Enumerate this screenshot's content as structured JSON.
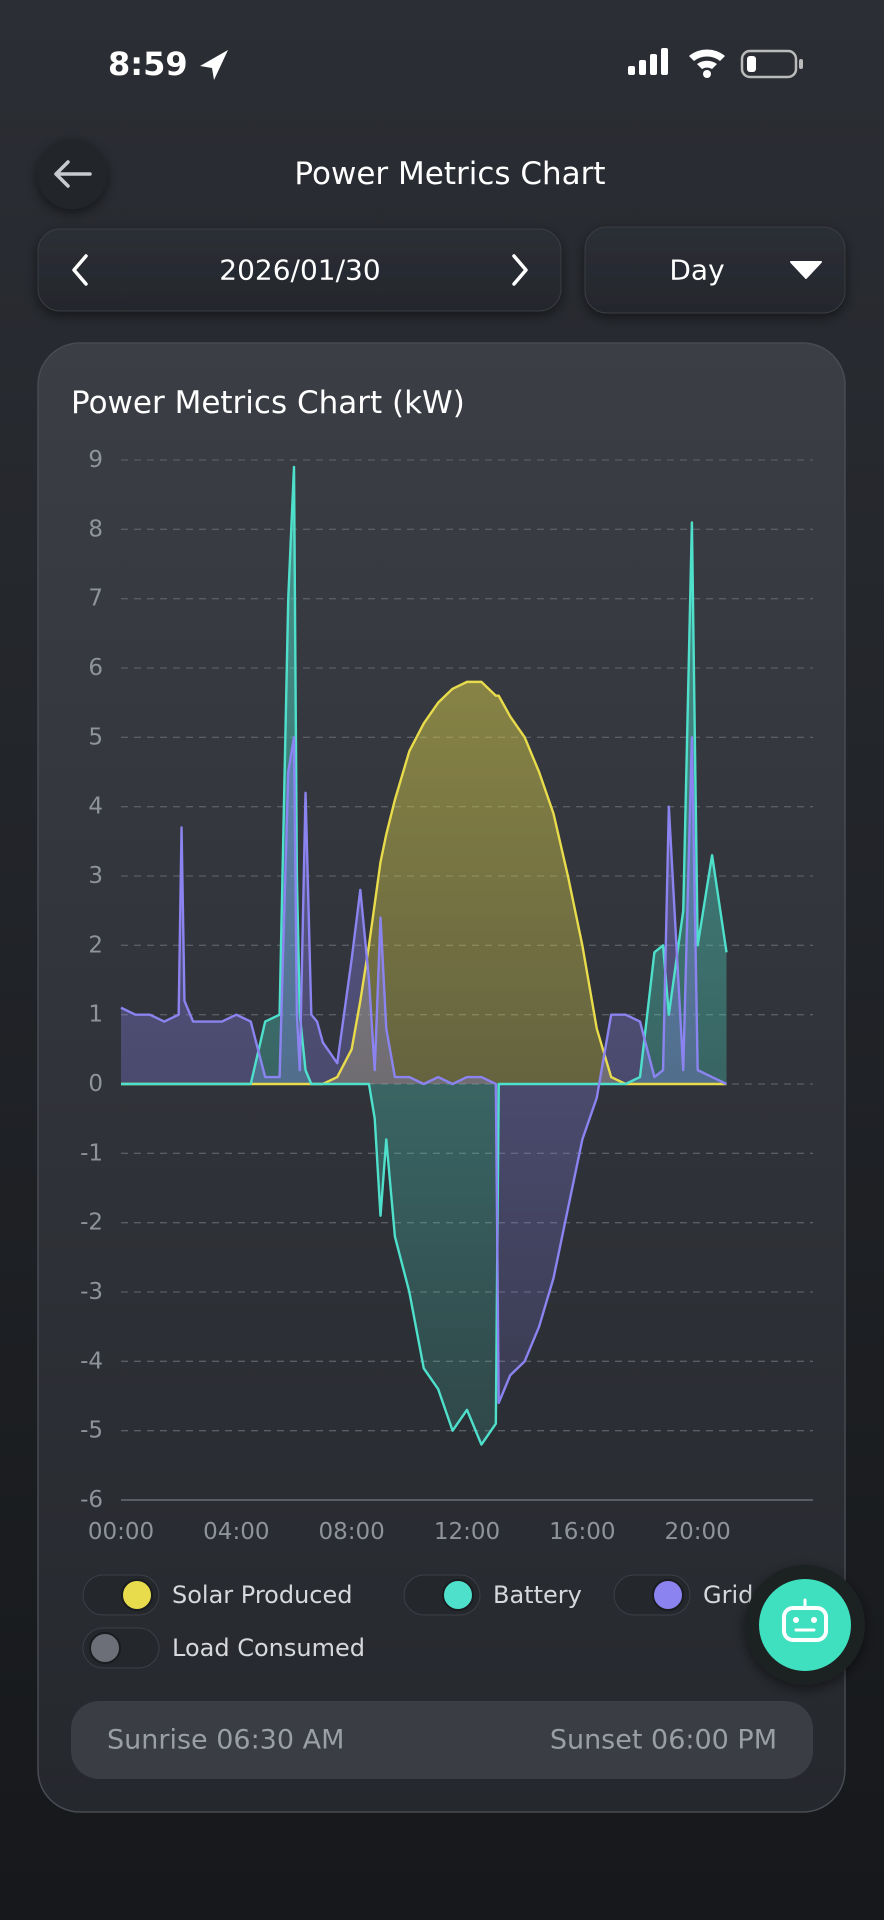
{
  "status_bar": {
    "time": "8:59"
  },
  "header": {
    "title": "Power Metrics Chart"
  },
  "date_picker": {
    "date": "2026/01/30",
    "period": "Day"
  },
  "chart_data": {
    "type": "area",
    "title": "Power Metrics Chart (kW)",
    "x": [
      0,
      0.5,
      1,
      1.5,
      2,
      2.1,
      2.2,
      2.5,
      3,
      3.5,
      4,
      4.5,
      5,
      5.5,
      5.8,
      6,
      6.1,
      6.2,
      6.4,
      6.6,
      6.8,
      7,
      7.5,
      8,
      8.3,
      8.6,
      8.8,
      9,
      9.2,
      9.5,
      10,
      10.5,
      11,
      11.5,
      12,
      12.5,
      13,
      13.1,
      13.5,
      14,
      14.5,
      15,
      15.5,
      16,
      16.5,
      17,
      17.5,
      18,
      18.5,
      18.8,
      19,
      19.5,
      19.8,
      20,
      20.5,
      21
    ],
    "xlim": [
      0,
      24
    ],
    "xticks": [
      {
        "value": 0,
        "label": "00:00"
      },
      {
        "value": 4,
        "label": "04:00"
      },
      {
        "value": 8,
        "label": "08:00"
      },
      {
        "value": 12,
        "label": "12:00"
      },
      {
        "value": 16,
        "label": "16:00"
      },
      {
        "value": 20,
        "label": "20:00"
      }
    ],
    "ylim": [
      -6,
      9
    ],
    "yticks": [
      9,
      8,
      7,
      6,
      5,
      4,
      3,
      2,
      1,
      0,
      -1,
      -2,
      -3,
      -4,
      -5,
      -6
    ],
    "grid": true,
    "legend": "bottom",
    "series": [
      {
        "name": "Solar Produced",
        "color": "#e8dc4c",
        "visible": true,
        "values": [
          0,
          0,
          0,
          0,
          0,
          0,
          0,
          0,
          0,
          0,
          0,
          0,
          0,
          0,
          0,
          0,
          0,
          0,
          0,
          0,
          0,
          0,
          0.1,
          0.5,
          1.2,
          2.0,
          2.6,
          3.2,
          3.6,
          4.1,
          4.8,
          5.2,
          5.5,
          5.7,
          5.8,
          5.8,
          5.6,
          5.6,
          5.3,
          5.0,
          4.5,
          3.9,
          3.0,
          2.0,
          0.8,
          0.1,
          0,
          0,
          0,
          0,
          0,
          0,
          0,
          0,
          0,
          0
        ]
      },
      {
        "name": "Battery",
        "color": "#4fe0cc",
        "visible": true,
        "values": [
          0,
          0,
          0,
          0,
          0,
          0,
          0,
          0,
          0,
          0,
          0,
          0,
          0.9,
          1.0,
          7.0,
          8.9,
          3.0,
          1.0,
          0.2,
          0,
          0,
          0,
          0,
          0,
          0,
          0,
          -0.5,
          -1.9,
          -0.8,
          -2.2,
          -3.0,
          -4.1,
          -4.4,
          -5.0,
          -4.7,
          -5.2,
          -4.9,
          0,
          0,
          0,
          0,
          0,
          0,
          0,
          0,
          0,
          0,
          0.1,
          1.9,
          2.0,
          1.0,
          2.5,
          8.1,
          2.0,
          3.3,
          1.9
        ]
      },
      {
        "name": "Grid",
        "color": "#8b84f0",
        "visible": true,
        "values": [
          1.1,
          1.0,
          1.0,
          0.9,
          1.0,
          3.7,
          1.2,
          0.9,
          0.9,
          0.9,
          1.0,
          0.9,
          0.1,
          0.1,
          4.5,
          5.0,
          1.0,
          0.2,
          4.2,
          1.0,
          0.9,
          0.6,
          0.3,
          1.8,
          2.8,
          1.5,
          0.2,
          2.4,
          0.8,
          0.1,
          0.1,
          0,
          0.1,
          0,
          0.1,
          0.1,
          0,
          -4.6,
          -4.2,
          -4.0,
          -3.5,
          -2.8,
          -1.8,
          -0.8,
          -0.2,
          1.0,
          1.0,
          0.9,
          0.1,
          0.2,
          4.0,
          0.2,
          5.0,
          0.2,
          0.1,
          0
        ]
      },
      {
        "name": "Load Consumed",
        "color": "#6c6f77",
        "visible": false
      }
    ]
  },
  "sun": {
    "sunrise": "Sunrise 06:30 AM",
    "sunset": "Sunset 06:00 PM"
  }
}
